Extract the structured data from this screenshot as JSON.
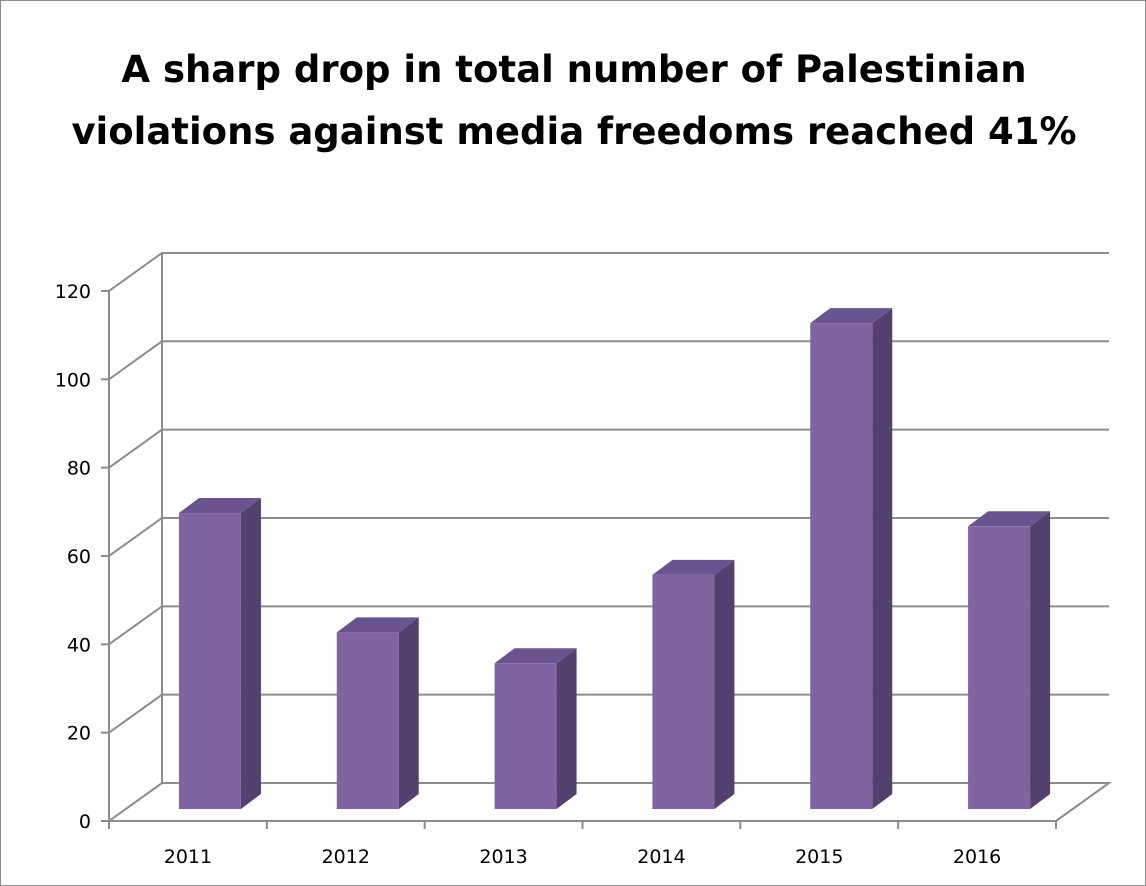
{
  "chart_data": {
    "type": "bar",
    "title": "A sharp drop in total number of Palestinian violations against media freedoms reached 41%",
    "categories": [
      "2011",
      "2012",
      "2013",
      "2014",
      "2015",
      "2016"
    ],
    "values": [
      67,
      40,
      33,
      53,
      110,
      64
    ],
    "xlabel": "",
    "ylabel": "",
    "ylim": [
      0,
      120
    ],
    "yticks": [
      0,
      20,
      40,
      60,
      80,
      100,
      120
    ],
    "grid": true,
    "legend": "none",
    "style": "3d-column",
    "colors": {
      "bar_front": "#8064a2",
      "bar_side": "#54406e",
      "bar_top": "#6b5390",
      "grid": "#8c8c8c"
    }
  }
}
